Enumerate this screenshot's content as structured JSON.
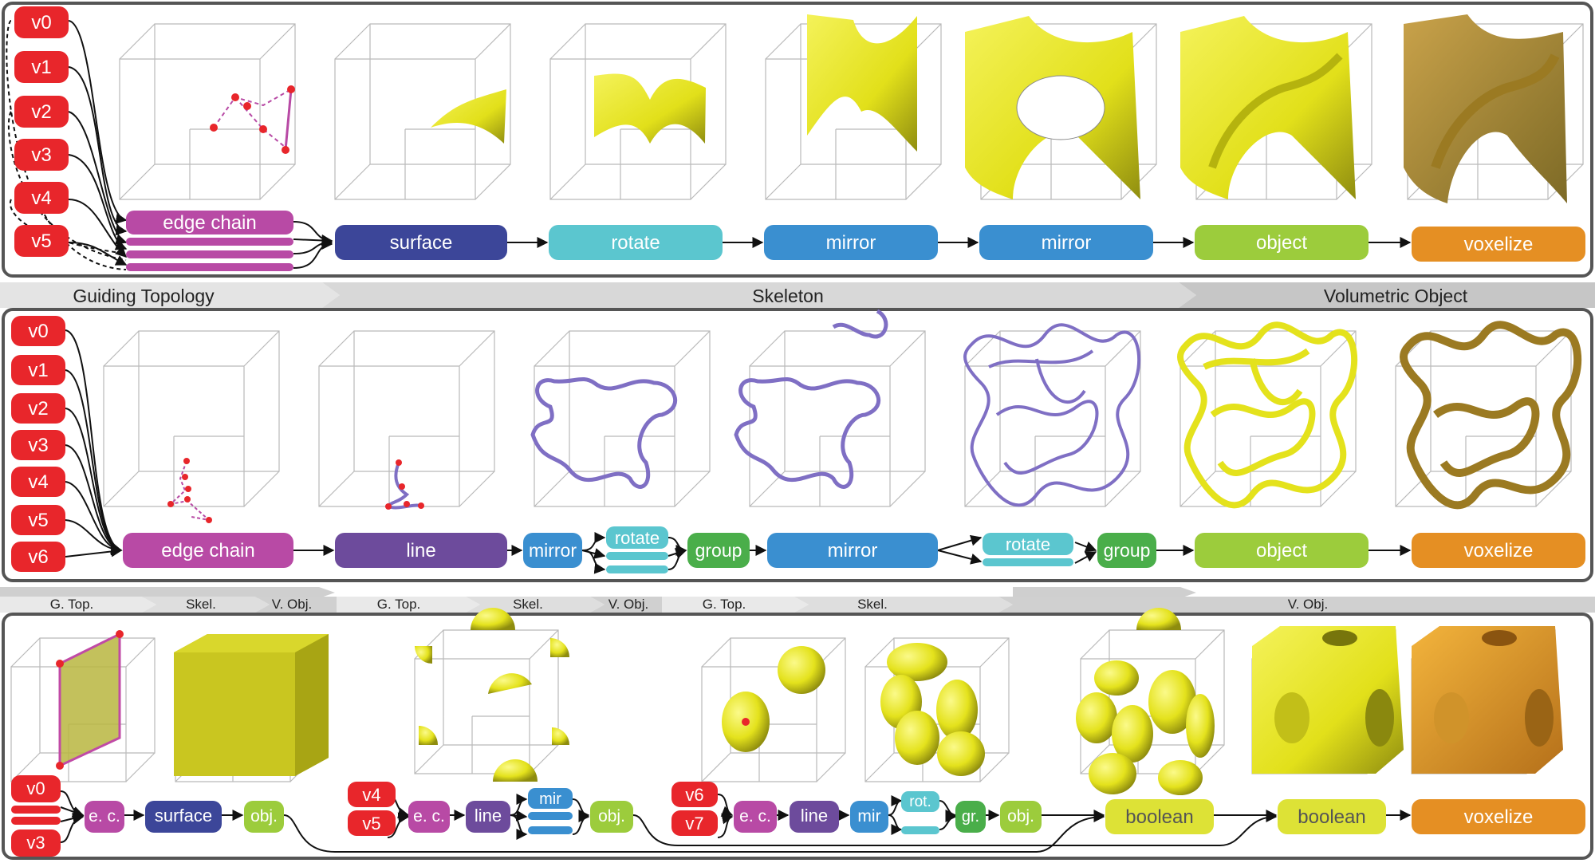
{
  "colors": {
    "vertex": "#e8262b",
    "edge_chain": "#b84aa5",
    "surface": "#3c4699",
    "rotate": "#5bc6cf",
    "mirror": "#3a8fd0",
    "object": "#9ccc3c",
    "voxelize": "#e58f23",
    "line": "#6d4b9c",
    "group": "#4aae4a",
    "boolean": "#dde236",
    "yellow_shape": "#e8e61a",
    "gold_shape": "#b8962a",
    "purple_curve": "#7f6fc4"
  },
  "top": {
    "vertices": [
      "v0",
      "v1",
      "v2",
      "v3",
      "v4",
      "v5"
    ],
    "nodes": {
      "edge_chain": "edge chain",
      "surface": "surface",
      "rotate": "rotate",
      "mirror1": "mirror",
      "mirror2": "mirror",
      "object": "object",
      "voxelize": "voxelize"
    }
  },
  "stage_band": {
    "guiding": "Guiding Topology",
    "skeleton": "Skeleton",
    "volumetric": "Volumetric Object"
  },
  "middle": {
    "vertices": [
      "v0",
      "v1",
      "v2",
      "v3",
      "v4",
      "v5",
      "v6"
    ],
    "nodes": {
      "edge_chain": "edge chain",
      "line": "line",
      "mirror1": "mirror",
      "rotate1": "rotate",
      "group1": "group",
      "mirror2": "mirror",
      "rotate2": "rotate",
      "group2": "group",
      "object": "object",
      "voxelize": "voxelize"
    }
  },
  "small_band": {
    "a1": "G. Top.",
    "a2": "Skel.",
    "a3": "V. Obj.",
    "b1": "G. Top.",
    "b2": "Skel.",
    "b3": "V. Obj.",
    "c1": "G. Top.",
    "c2": "Skel.",
    "c3": "V. Obj."
  },
  "bottom": {
    "g1": {
      "v_top": "v0",
      "v_bottom": "v3",
      "ec": "e. c.",
      "surface": "surface",
      "obj": "obj."
    },
    "g2": {
      "v_top": "v4",
      "v_bottom": "v5",
      "ec": "e. c.",
      "line": "line",
      "mir": "mir",
      "obj": "obj."
    },
    "g3": {
      "v_top": "v6",
      "v_bottom": "v7",
      "ec": "e. c.",
      "line": "line",
      "mir": "mir",
      "rot": "rot.",
      "gr": "gr.",
      "obj": "obj."
    },
    "boolean1": "boolean",
    "boolean2": "boolean",
    "voxelize": "voxelize"
  }
}
